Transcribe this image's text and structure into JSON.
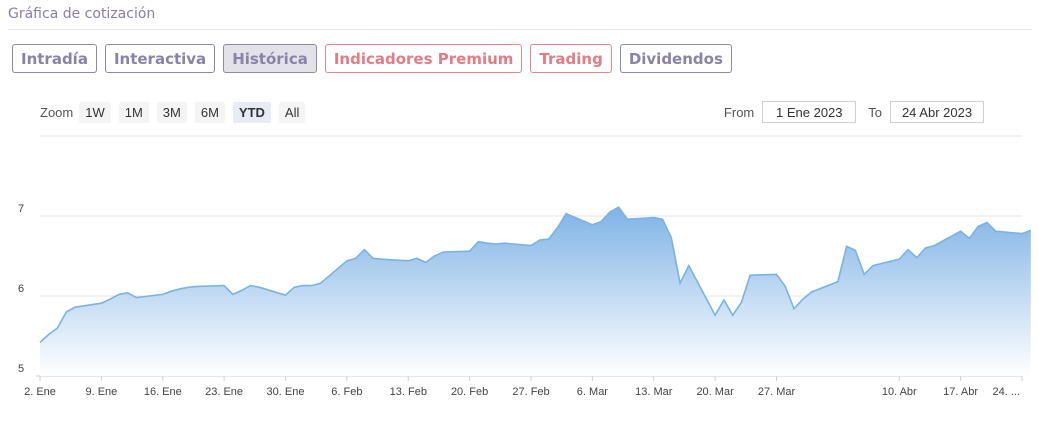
{
  "widget": {
    "title": "Gráfica de cotización"
  },
  "tabs": [
    {
      "label": "Intradía",
      "active": false,
      "premium": false
    },
    {
      "label": "Interactiva",
      "active": false,
      "premium": false
    },
    {
      "label": "Histórica",
      "active": true,
      "premium": false
    },
    {
      "label": "Indicadores Premium",
      "active": false,
      "premium": true
    },
    {
      "label": "Trading",
      "active": false,
      "premium": true
    },
    {
      "label": "Dividendos",
      "active": false,
      "premium": false
    }
  ],
  "zoom": {
    "label": "Zoom",
    "buttons": [
      "1W",
      "1M",
      "3M",
      "6M",
      "YTD",
      "All"
    ],
    "selected": "YTD"
  },
  "range": {
    "from_label": "From",
    "from_value": "1 Ene 2023",
    "to_label": "To",
    "to_value": "24 Abr 2023"
  },
  "colors": {
    "line": "#7ab3e3",
    "fill_top": "#7fb3e6",
    "fill_bottom": "#ffffff",
    "tab_text": "#8a82a8",
    "premium_text": "#e27d85"
  },
  "chart_data": {
    "type": "area",
    "title": "",
    "xlabel": "",
    "ylabel": "",
    "ylim": [
      5,
      8
    ],
    "yticks": [
      5,
      6,
      7
    ],
    "grid": true,
    "x_ticks": [
      {
        "label": "2. Ene",
        "day": 1
      },
      {
        "label": "9. Ene",
        "day": 8
      },
      {
        "label": "16. Ene",
        "day": 15
      },
      {
        "label": "23. Ene",
        "day": 22
      },
      {
        "label": "30. Ene",
        "day": 29
      },
      {
        "label": "6. Feb",
        "day": 36
      },
      {
        "label": "13. Feb",
        "day": 43
      },
      {
        "label": "20. Feb",
        "day": 50
      },
      {
        "label": "27. Feb",
        "day": 57
      },
      {
        "label": "6. Mar",
        "day": 64
      },
      {
        "label": "13. Mar",
        "day": 71
      },
      {
        "label": "20. Mar",
        "day": 78
      },
      {
        "label": "27. Mar",
        "day": 85
      },
      {
        "label": "10. Abr",
        "day": 99
      },
      {
        "label": "17. Abr",
        "day": 106
      },
      {
        "label": "24. ...",
        "day": 113
      }
    ],
    "series": [
      {
        "points": [
          [
            1,
            5.42
          ],
          [
            2,
            5.52
          ],
          [
            3,
            5.6
          ],
          [
            4,
            5.8
          ],
          [
            5,
            5.86
          ],
          [
            6,
            5.91
          ],
          [
            7,
            5.96
          ],
          [
            8,
            6.02
          ],
          [
            9,
            6.04
          ],
          [
            10,
            5.98
          ],
          [
            11,
            6.02
          ],
          [
            12,
            6.06
          ],
          [
            13,
            6.09
          ],
          [
            14,
            6.11
          ],
          [
            15,
            6.12
          ],
          [
            16,
            6.13
          ],
          [
            17,
            6.02
          ],
          [
            18,
            6.07
          ],
          [
            19,
            6.13
          ],
          [
            20,
            6.11
          ],
          [
            21,
            6.01
          ],
          [
            22,
            6.11
          ],
          [
            23,
            6.13
          ],
          [
            24,
            6.13
          ],
          [
            25,
            6.16
          ],
          [
            26,
            6.44
          ],
          [
            27,
            6.47
          ],
          [
            28,
            6.58
          ],
          [
            29,
            6.47
          ],
          [
            30,
            6.46
          ],
          [
            31,
            6.44
          ],
          [
            32,
            6.47
          ],
          [
            33,
            6.42
          ],
          [
            34,
            6.5
          ],
          [
            35,
            6.55
          ],
          [
            36,
            6.56
          ],
          [
            37,
            6.68
          ],
          [
            38,
            6.66
          ],
          [
            39,
            6.65
          ],
          [
            40,
            6.66
          ],
          [
            41,
            6.63
          ],
          [
            42,
            6.7
          ],
          [
            43,
            6.71
          ],
          [
            44,
            6.85
          ],
          [
            45,
            7.03
          ],
          [
            46,
            6.89
          ],
          [
            47,
            6.93
          ],
          [
            48,
            7.05
          ],
          [
            49,
            7.11
          ],
          [
            50,
            6.96
          ],
          [
            51,
            6.98
          ],
          [
            52,
            6.96
          ],
          [
            53,
            6.73
          ],
          [
            54,
            6.16
          ],
          [
            55,
            6.38
          ],
          [
            56,
            5.76
          ],
          [
            57,
            5.95
          ],
          [
            58,
            5.76
          ],
          [
            59,
            5.92
          ],
          [
            60,
            6.26
          ],
          [
            61,
            6.27
          ],
          [
            62,
            6.12
          ],
          [
            63,
            5.84
          ],
          [
            64,
            5.96
          ],
          [
            65,
            6.05
          ],
          [
            66,
            6.18
          ],
          [
            67,
            6.62
          ],
          [
            68,
            6.57
          ],
          [
            69,
            6.27
          ],
          [
            70,
            6.38
          ],
          [
            71,
            6.46
          ],
          [
            72,
            6.58
          ],
          [
            73,
            6.48
          ],
          [
            74,
            6.6
          ],
          [
            75,
            6.63
          ],
          [
            76,
            6.81
          ],
          [
            77,
            6.72
          ],
          [
            78,
            6.87
          ],
          [
            79,
            6.92
          ],
          [
            80,
            6.81
          ],
          [
            81,
            6.78
          ],
          [
            82,
            6.82
          ]
        ]
      }
    ]
  }
}
